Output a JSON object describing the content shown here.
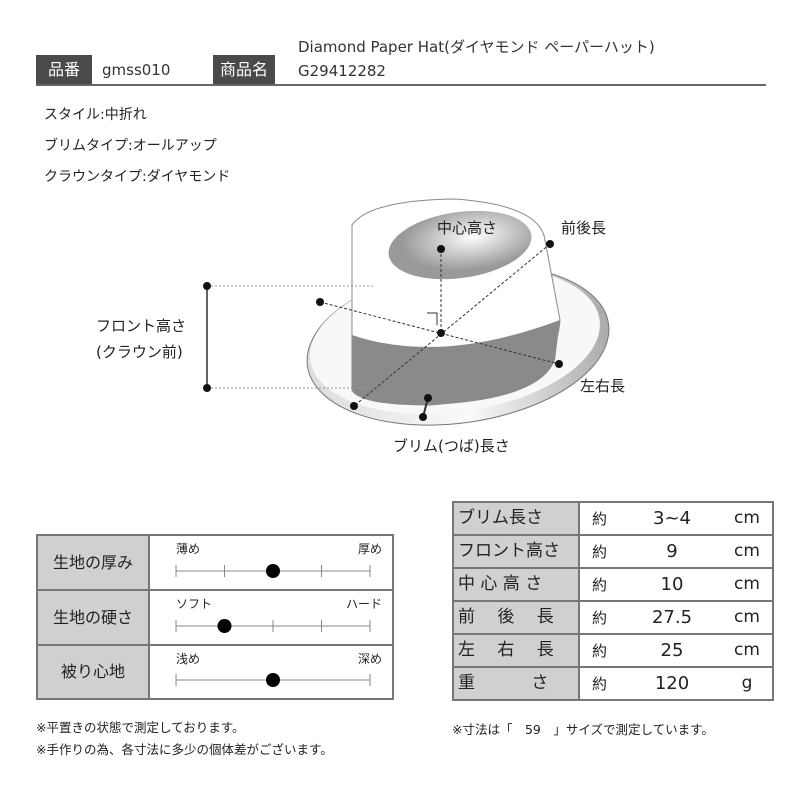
{
  "header": {
    "code_label": "品番",
    "code_value": "gmss010",
    "name_label": "商品名",
    "name_line1": "Diamond Paper Hat(ダイヤモンド ペーパーハット)",
    "name_line2": "G29412282"
  },
  "specs": [
    "スタイル:中折れ",
    "ブリムタイプ:オールアップ",
    "クラウンタイプ:ダイヤモンド"
  ],
  "diagram": {
    "center_height": "中心高さ",
    "front_back": "前後長",
    "front_height_1": "フロント高さ",
    "front_height_2": "(クラウン前)",
    "left_right": "左右長",
    "brim_length": "ブリム(つば)長さ"
  },
  "scales": [
    {
      "label": "生地の厚み",
      "left": "薄め",
      "right": "厚め",
      "ticks": 5,
      "position": 0.5
    },
    {
      "label": "生地の硬さ",
      "left": "ソフト",
      "right": "ハード",
      "ticks": 5,
      "position": 0.25
    },
    {
      "label": "被り心地",
      "left": "浅め",
      "right": "深め",
      "ticks": 2,
      "position": 0.5
    }
  ],
  "measurements": [
    {
      "label": "ブリム長さ",
      "approx": "約",
      "value": "3~4",
      "unit": "cm"
    },
    {
      "label": "フロント高さ",
      "approx": "約",
      "value": "9",
      "unit": "cm"
    },
    {
      "label": "中 心 高 さ",
      "approx": "約",
      "value": "10",
      "unit": "cm"
    },
    {
      "label": "前　 後 　長",
      "approx": "約",
      "value": "27.5",
      "unit": "cm"
    },
    {
      "label": "左　 右 　長",
      "approx": "約",
      "value": "25",
      "unit": "cm"
    },
    {
      "label": "重　　　 さ",
      "approx": "約",
      "value": "120",
      "unit": "g"
    }
  ],
  "notes": {
    "left1": "※平置きの状態で測定しております。",
    "left2": "※手作りの為、各寸法に多少の個体差がございます。",
    "right": "※寸法は「　59　」サイズで測定しています。"
  }
}
